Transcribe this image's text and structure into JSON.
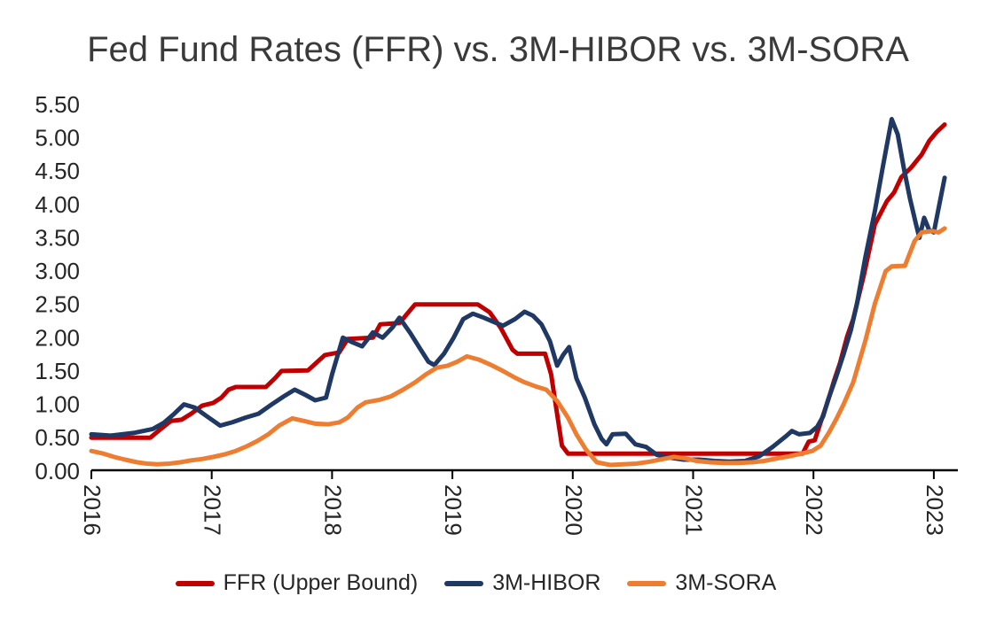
{
  "title": "Fed Fund Rates (FFR) vs. 3M-HIBOR vs. 3M-SORA",
  "colors": {
    "ffr": "#C00000",
    "hibor": "#1F3864",
    "sora": "#ED7D31",
    "axis": "#000000",
    "text": "#262626"
  },
  "chart_data": {
    "type": "line",
    "title": "Fed Fund Rates (FFR) vs. 3M-HIBOR vs. 3M-SORA",
    "grid": false,
    "legend_position": "bottom",
    "x_axis": {
      "tick_labels": [
        "2016",
        "2017",
        "2018",
        "2019",
        "2020",
        "2021",
        "2022",
        "2023"
      ],
      "tick_values": [
        2016,
        2017,
        2018,
        2019,
        2020,
        2021,
        2022,
        2023
      ],
      "range": [
        2016.0,
        2023.2
      ]
    },
    "y_axis": {
      "tick_labels": [
        "0.00",
        "0.50",
        "1.00",
        "1.50",
        "2.00",
        "2.50",
        "3.00",
        "3.50",
        "4.00",
        "4.50",
        "5.00",
        "5.50"
      ],
      "tick_values": [
        0.0,
        0.5,
        1.0,
        1.5,
        2.0,
        2.5,
        3.0,
        3.5,
        4.0,
        4.5,
        5.0,
        5.5
      ],
      "range": [
        0.0,
        5.5
      ]
    },
    "series": [
      {
        "name": "FFR (Upper Bound)",
        "key": "ffr",
        "color": "#C00000",
        "points": [
          [
            2016.0,
            0.5
          ],
          [
            2016.49,
            0.5
          ],
          [
            2016.57,
            0.62
          ],
          [
            2016.66,
            0.75
          ],
          [
            2016.75,
            0.77
          ],
          [
            2016.83,
            0.86
          ],
          [
            2016.92,
            0.98
          ],
          [
            2017.01,
            1.02
          ],
          [
            2017.08,
            1.1
          ],
          [
            2017.14,
            1.22
          ],
          [
            2017.2,
            1.26
          ],
          [
            2017.45,
            1.26
          ],
          [
            2017.53,
            1.4
          ],
          [
            2017.58,
            1.5
          ],
          [
            2017.8,
            1.51
          ],
          [
            2017.94,
            1.74
          ],
          [
            2018.06,
            1.78
          ],
          [
            2018.13,
            1.98
          ],
          [
            2018.34,
            2.0
          ],
          [
            2018.4,
            2.2
          ],
          [
            2018.56,
            2.22
          ],
          [
            2018.62,
            2.35
          ],
          [
            2018.69,
            2.5
          ],
          [
            2019.21,
            2.5
          ],
          [
            2019.31,
            2.38
          ],
          [
            2019.4,
            2.15
          ],
          [
            2019.5,
            1.82
          ],
          [
            2019.54,
            1.76
          ],
          [
            2019.77,
            1.76
          ],
          [
            2019.82,
            1.45
          ],
          [
            2019.87,
            0.85
          ],
          [
            2019.91,
            0.38
          ],
          [
            2019.96,
            0.26
          ],
          [
            2021.91,
            0.26
          ],
          [
            2021.96,
            0.44
          ],
          [
            2022.01,
            0.46
          ],
          [
            2022.06,
            0.73
          ],
          [
            2022.12,
            1.05
          ],
          [
            2022.17,
            1.35
          ],
          [
            2022.22,
            1.62
          ],
          [
            2022.28,
            2.02
          ],
          [
            2022.33,
            2.28
          ],
          [
            2022.42,
            2.95
          ],
          [
            2022.51,
            3.7
          ],
          [
            2022.61,
            4.05
          ],
          [
            2022.67,
            4.18
          ],
          [
            2022.73,
            4.41
          ],
          [
            2022.81,
            4.55
          ],
          [
            2022.9,
            4.75
          ],
          [
            2022.96,
            4.95
          ],
          [
            2023.02,
            5.08
          ],
          [
            2023.09,
            5.2
          ]
        ]
      },
      {
        "name": "3M-HIBOR",
        "key": "hibor",
        "color": "#1F3864",
        "points": [
          [
            2016.0,
            0.55
          ],
          [
            2016.16,
            0.53
          ],
          [
            2016.35,
            0.57
          ],
          [
            2016.51,
            0.63
          ],
          [
            2016.6,
            0.72
          ],
          [
            2016.69,
            0.86
          ],
          [
            2016.77,
            1.0
          ],
          [
            2016.86,
            0.95
          ],
          [
            2016.96,
            0.82
          ],
          [
            2017.07,
            0.68
          ],
          [
            2017.17,
            0.73
          ],
          [
            2017.28,
            0.8
          ],
          [
            2017.39,
            0.86
          ],
          [
            2017.5,
            1.0
          ],
          [
            2017.6,
            1.12
          ],
          [
            2017.69,
            1.22
          ],
          [
            2017.78,
            1.14
          ],
          [
            2017.86,
            1.06
          ],
          [
            2017.95,
            1.1
          ],
          [
            2018.0,
            1.45
          ],
          [
            2018.09,
            2.0
          ],
          [
            2018.17,
            1.93
          ],
          [
            2018.25,
            1.87
          ],
          [
            2018.34,
            2.08
          ],
          [
            2018.42,
            2.0
          ],
          [
            2018.5,
            2.15
          ],
          [
            2018.56,
            2.3
          ],
          [
            2018.65,
            2.07
          ],
          [
            2018.73,
            1.84
          ],
          [
            2018.8,
            1.64
          ],
          [
            2018.85,
            1.59
          ],
          [
            2018.93,
            1.76
          ],
          [
            2019.01,
            2.0
          ],
          [
            2019.09,
            2.28
          ],
          [
            2019.17,
            2.36
          ],
          [
            2019.26,
            2.3
          ],
          [
            2019.34,
            2.24
          ],
          [
            2019.42,
            2.18
          ],
          [
            2019.52,
            2.28
          ],
          [
            2019.6,
            2.39
          ],
          [
            2019.67,
            2.33
          ],
          [
            2019.74,
            2.2
          ],
          [
            2019.81,
            1.95
          ],
          [
            2019.87,
            1.58
          ],
          [
            2019.92,
            1.74
          ],
          [
            2019.97,
            1.86
          ],
          [
            2020.03,
            1.39
          ],
          [
            2020.1,
            1.1
          ],
          [
            2020.18,
            0.7
          ],
          [
            2020.24,
            0.48
          ],
          [
            2020.28,
            0.4
          ],
          [
            2020.33,
            0.55
          ],
          [
            2020.44,
            0.56
          ],
          [
            2020.52,
            0.4
          ],
          [
            2020.61,
            0.36
          ],
          [
            2020.7,
            0.24
          ],
          [
            2020.81,
            0.2
          ],
          [
            2020.92,
            0.17
          ],
          [
            2021.05,
            0.17
          ],
          [
            2021.18,
            0.15
          ],
          [
            2021.3,
            0.14
          ],
          [
            2021.43,
            0.15
          ],
          [
            2021.55,
            0.22
          ],
          [
            2021.66,
            0.36
          ],
          [
            2021.77,
            0.52
          ],
          [
            2021.82,
            0.6
          ],
          [
            2021.88,
            0.55
          ],
          [
            2021.97,
            0.57
          ],
          [
            2022.03,
            0.66
          ],
          [
            2022.08,
            0.82
          ],
          [
            2022.12,
            1.06
          ],
          [
            2022.19,
            1.42
          ],
          [
            2022.25,
            1.75
          ],
          [
            2022.31,
            2.11
          ],
          [
            2022.36,
            2.5
          ],
          [
            2022.43,
            3.2
          ],
          [
            2022.51,
            3.9
          ],
          [
            2022.58,
            4.6
          ],
          [
            2022.65,
            5.28
          ],
          [
            2022.7,
            5.05
          ],
          [
            2022.75,
            4.55
          ],
          [
            2022.8,
            4.1
          ],
          [
            2022.85,
            3.72
          ],
          [
            2022.88,
            3.5
          ],
          [
            2022.92,
            3.8
          ],
          [
            2022.96,
            3.62
          ],
          [
            2023.0,
            3.58
          ],
          [
            2023.09,
            4.4
          ]
        ]
      },
      {
        "name": "3M-SORA",
        "key": "sora",
        "color": "#ED7D31",
        "points": [
          [
            2016.0,
            0.3
          ],
          [
            2016.1,
            0.26
          ],
          [
            2016.19,
            0.21
          ],
          [
            2016.28,
            0.17
          ],
          [
            2016.38,
            0.13
          ],
          [
            2016.46,
            0.11
          ],
          [
            2016.55,
            0.1
          ],
          [
            2016.65,
            0.11
          ],
          [
            2016.74,
            0.13
          ],
          [
            2016.83,
            0.16
          ],
          [
            2016.92,
            0.18
          ],
          [
            2017.01,
            0.21
          ],
          [
            2017.11,
            0.25
          ],
          [
            2017.2,
            0.3
          ],
          [
            2017.29,
            0.37
          ],
          [
            2017.38,
            0.45
          ],
          [
            2017.47,
            0.55
          ],
          [
            2017.56,
            0.68
          ],
          [
            2017.67,
            0.79
          ],
          [
            2017.77,
            0.75
          ],
          [
            2017.86,
            0.71
          ],
          [
            2017.97,
            0.7
          ],
          [
            2018.06,
            0.73
          ],
          [
            2018.13,
            0.8
          ],
          [
            2018.21,
            0.95
          ],
          [
            2018.28,
            1.03
          ],
          [
            2018.4,
            1.07
          ],
          [
            2018.49,
            1.12
          ],
          [
            2018.59,
            1.22
          ],
          [
            2018.69,
            1.33
          ],
          [
            2018.78,
            1.45
          ],
          [
            2018.87,
            1.55
          ],
          [
            2018.96,
            1.58
          ],
          [
            2019.04,
            1.64
          ],
          [
            2019.12,
            1.72
          ],
          [
            2019.22,
            1.67
          ],
          [
            2019.31,
            1.6
          ],
          [
            2019.42,
            1.5
          ],
          [
            2019.52,
            1.4
          ],
          [
            2019.6,
            1.33
          ],
          [
            2019.69,
            1.27
          ],
          [
            2019.78,
            1.22
          ],
          [
            2019.87,
            1.05
          ],
          [
            2019.96,
            0.8
          ],
          [
            2020.03,
            0.55
          ],
          [
            2020.11,
            0.32
          ],
          [
            2020.2,
            0.13
          ],
          [
            2020.31,
            0.09
          ],
          [
            2020.42,
            0.1
          ],
          [
            2020.53,
            0.11
          ],
          [
            2020.64,
            0.14
          ],
          [
            2020.75,
            0.18
          ],
          [
            2020.84,
            0.21
          ],
          [
            2020.93,
            0.19
          ],
          [
            2021.03,
            0.15
          ],
          [
            2021.14,
            0.13
          ],
          [
            2021.25,
            0.12
          ],
          [
            2021.37,
            0.12
          ],
          [
            2021.49,
            0.13
          ],
          [
            2021.59,
            0.15
          ],
          [
            2021.7,
            0.19
          ],
          [
            2021.8,
            0.22
          ],
          [
            2021.9,
            0.26
          ],
          [
            2021.99,
            0.3
          ],
          [
            2022.06,
            0.38
          ],
          [
            2022.13,
            0.58
          ],
          [
            2022.19,
            0.78
          ],
          [
            2022.25,
            1.0
          ],
          [
            2022.33,
            1.33
          ],
          [
            2022.43,
            1.95
          ],
          [
            2022.51,
            2.51
          ],
          [
            2022.6,
            3.0
          ],
          [
            2022.65,
            3.07
          ],
          [
            2022.76,
            3.08
          ],
          [
            2022.84,
            3.45
          ],
          [
            2022.9,
            3.58
          ],
          [
            2022.99,
            3.6
          ],
          [
            2023.04,
            3.58
          ],
          [
            2023.09,
            3.64
          ]
        ]
      }
    ]
  }
}
